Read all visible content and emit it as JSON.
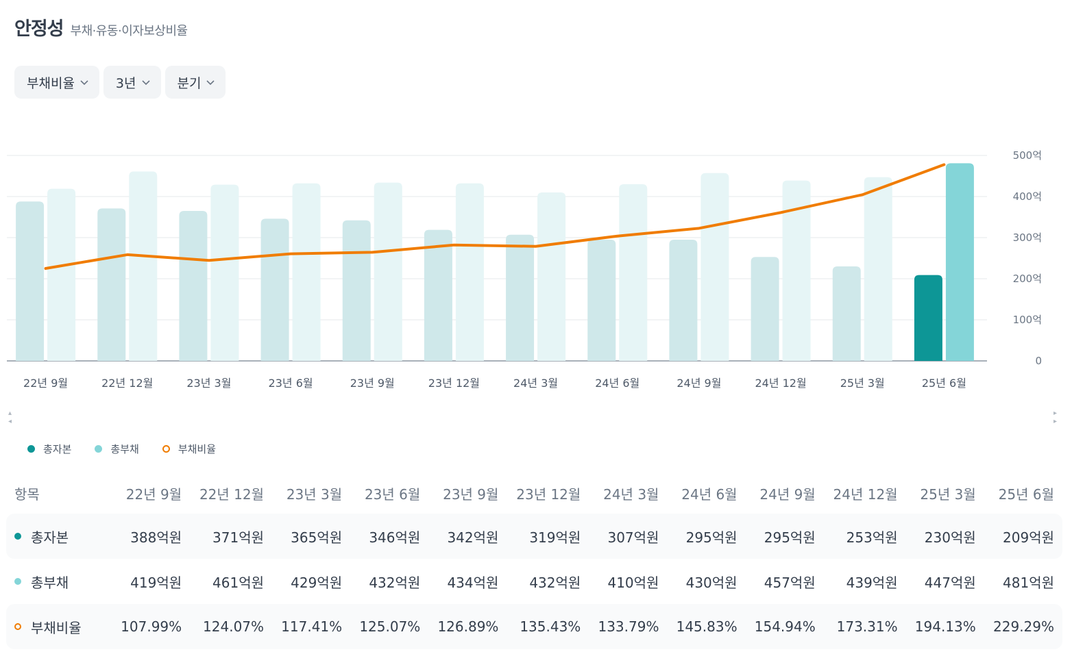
{
  "header": {
    "title": "안정성",
    "subtitle": "부채·유동·이자보상비율"
  },
  "filters": [
    {
      "label": "부채비율"
    },
    {
      "label": "3년"
    },
    {
      "label": "분기"
    }
  ],
  "colors": {
    "equity": "#cfe8ea",
    "debt": "#e6f5f6",
    "equity_active": "#0d9696",
    "debt_active": "#84d5d8",
    "ratio_line": "#f07c00",
    "grid": "#e5e8eb",
    "axis": "#8b95a1"
  },
  "chart_data": {
    "type": "bar",
    "categories": [
      "22년 9월",
      "22년 12월",
      "23년 3월",
      "23년 6월",
      "23년 9월",
      "23년 12월",
      "24년 3월",
      "24년 6월",
      "24년 9월",
      "24년 12월",
      "25년 3월",
      "25년 6월"
    ],
    "series": [
      {
        "name": "총자본",
        "values": [
          388,
          371,
          365,
          346,
          342,
          319,
          307,
          295,
          295,
          253,
          230,
          209
        ]
      },
      {
        "name": "총부채",
        "values": [
          419,
          461,
          429,
          432,
          434,
          432,
          410,
          430,
          457,
          439,
          447,
          481
        ]
      },
      {
        "name": "부채비율",
        "type": "line",
        "values": [
          107.99,
          124.07,
          117.41,
          125.07,
          126.89,
          135.43,
          133.79,
          145.83,
          154.94,
          173.31,
          194.13,
          229.29
        ]
      }
    ],
    "y_ticks": [
      "500억",
      "400억",
      "300억",
      "200억",
      "100억",
      "0"
    ],
    "ylim": [
      0,
      500
    ],
    "ratio_ylim": [
      0,
      240
    ],
    "legend_position": "bottom-left"
  },
  "legend": [
    {
      "label": "총자본",
      "color": "#0d9696",
      "style": "dot"
    },
    {
      "label": "총부채",
      "color": "#84d5d8",
      "style": "dot"
    },
    {
      "label": "부채비율",
      "color": "#f07c00",
      "style": "ring"
    }
  ],
  "table": {
    "header_label": "항목",
    "columns": [
      "22년 9월",
      "22년 12월",
      "23년 3월",
      "23년 6월",
      "23년 9월",
      "23년 12월",
      "24년 3월",
      "24년 6월",
      "24년 9월",
      "24년 12월",
      "25년 3월",
      "25년 6월"
    ],
    "rows": [
      {
        "label": "총자본",
        "marker": "dot",
        "color": "#0d9696",
        "values": [
          "388억원",
          "371억원",
          "365억원",
          "346억원",
          "342억원",
          "319억원",
          "307억원",
          "295억원",
          "295억원",
          "253억원",
          "230억원",
          "209억원"
        ]
      },
      {
        "label": "총부채",
        "marker": "dot",
        "color": "#84d5d8",
        "values": [
          "419억원",
          "461억원",
          "429억원",
          "432억원",
          "434억원",
          "432억원",
          "410억원",
          "430억원",
          "457억원",
          "439억원",
          "447억원",
          "481억원"
        ]
      },
      {
        "label": "부채비율",
        "marker": "ring",
        "color": "#f07c00",
        "values": [
          "107.99%",
          "124.07%",
          "117.41%",
          "125.07%",
          "126.89%",
          "135.43%",
          "133.79%",
          "145.83%",
          "154.94%",
          "173.31%",
          "194.13%",
          "229.29%"
        ]
      }
    ]
  }
}
